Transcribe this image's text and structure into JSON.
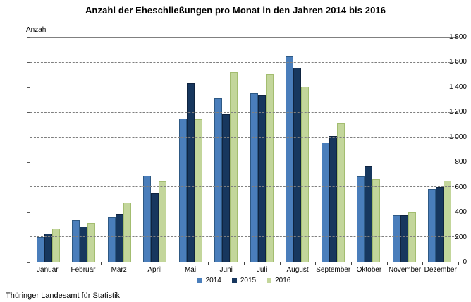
{
  "title": "Anzahl der Eheschließungen pro Monat in den Jahren 2014 bis 2016",
  "footer": "Thüringer Landesamt für Statistik",
  "chart_data": {
    "type": "bar",
    "title": "Anzahl der Eheschließungen pro Monat in den Jahren 2014 bis 2016",
    "xlabel": "",
    "ylabel": "Anzahl",
    "ylim": [
      0,
      1800
    ],
    "ytick_step": 200,
    "ytick_labels": [
      "0",
      "200",
      "400",
      "600",
      "800",
      "1 000",
      "1 200",
      "1 400",
      "1 600",
      "1 800"
    ],
    "grid": "horizontal-dashed",
    "legend_position": "bottom-center",
    "categories": [
      "Januar",
      "Februar",
      "März",
      "April",
      "Mai",
      "Juni",
      "Juli",
      "August",
      "September",
      "Oktober",
      "November",
      "Dezember"
    ],
    "series": [
      {
        "name": "2014",
        "color": "#4A7EBB",
        "border_color": "#2E5984",
        "values": [
          200,
          335,
          355,
          690,
          1155,
          1315,
          1360,
          1650,
          960,
          685,
          375,
          585
        ]
      },
      {
        "name": "2015",
        "color": "#17375E",
        "border_color": "#0F2440",
        "values": [
          230,
          285,
          385,
          550,
          1435,
          1185,
          1340,
          1560,
          1010,
          775,
          375,
          600
        ]
      },
      {
        "name": "2016",
        "color": "#C3D69B",
        "border_color": "#A3BD70",
        "values": [
          265,
          315,
          475,
          650,
          1145,
          1525,
          1510,
          1410,
          1115,
          665,
          400,
          655
        ]
      }
    ]
  }
}
